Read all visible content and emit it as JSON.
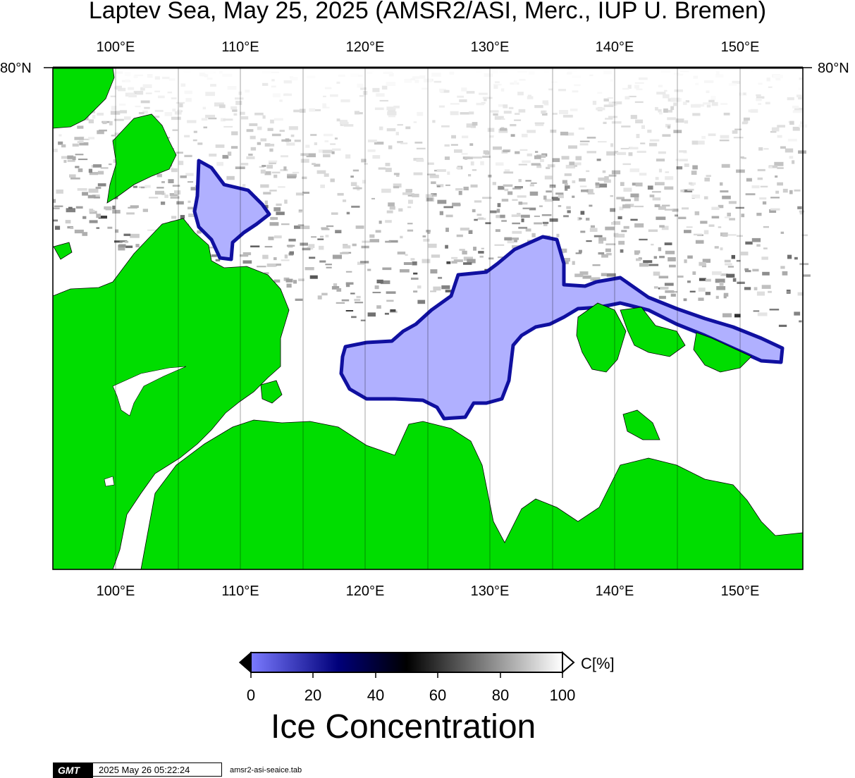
{
  "title": "Laptev Sea, May 25, 2025 (AMSR2/ASI, Merc., IUP U. Bremen)",
  "map": {
    "projection": "Mercator",
    "lon_labels": [
      "100°E",
      "110°E",
      "120°E",
      "130°E",
      "140°E",
      "150°E"
    ],
    "lat_label_left": "80°N",
    "lat_label_right": "80°N",
    "colors": {
      "land": "#00dd00",
      "open_water": "#b0b0ff",
      "open_ice_boundary": "#1010a0",
      "background": "#ffffff"
    }
  },
  "colorbar": {
    "unit": "C[%]",
    "ticks": [
      "0",
      "20",
      "40",
      "60",
      "80",
      "100"
    ],
    "label": "Ice Concentration"
  },
  "footer": {
    "logo_text": "GMT",
    "timestamp": "2025 May 26 05:22:24",
    "filename": "amsr2-asi-seaice.tab"
  }
}
